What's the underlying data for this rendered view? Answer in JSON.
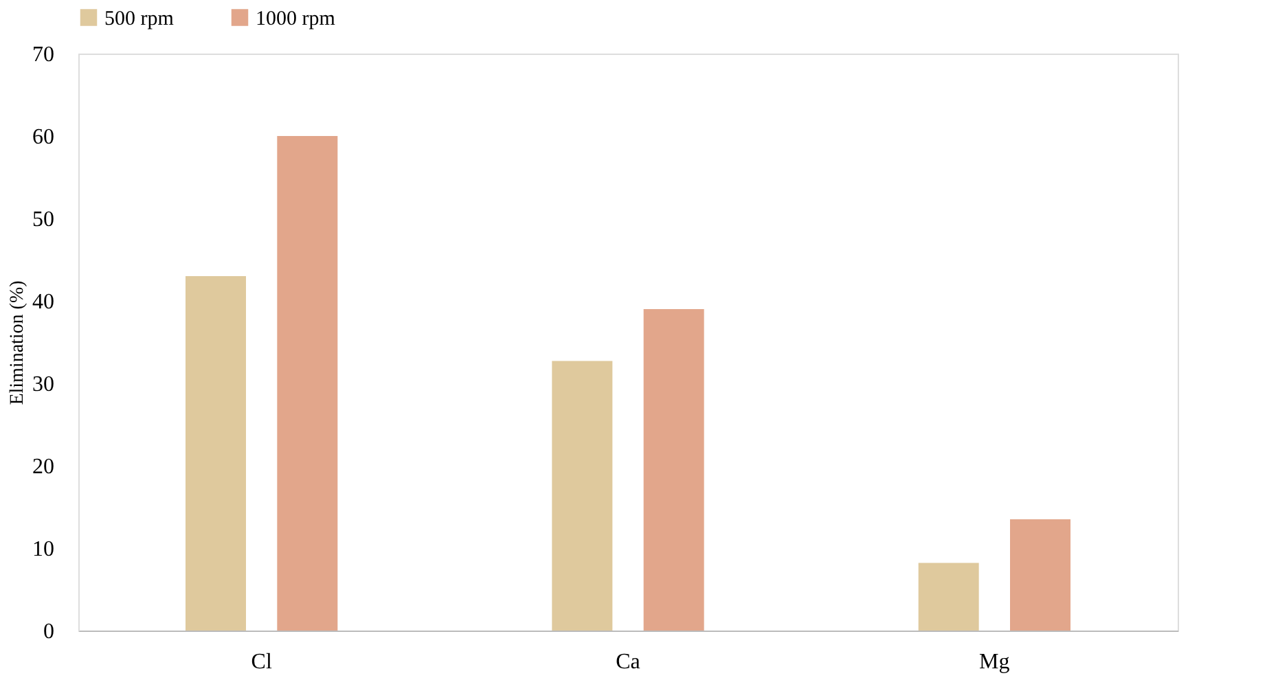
{
  "chart_data": {
    "type": "bar",
    "ylabel": "Elimination (%)",
    "categories": [
      "Cl",
      "Ca",
      "Mg"
    ],
    "series": [
      {
        "name": "500 rpm",
        "color": "#dfc99d",
        "values": [
          43,
          32.7,
          8.2
        ]
      },
      {
        "name": "1000 rpm",
        "color": "#e2a68b",
        "values": [
          60,
          39,
          13.5
        ]
      }
    ],
    "ylim": [
      0,
      70
    ],
    "yticks": [
      0,
      10,
      20,
      30,
      40,
      50,
      60,
      70
    ],
    "grid": false,
    "legend": "top"
  }
}
